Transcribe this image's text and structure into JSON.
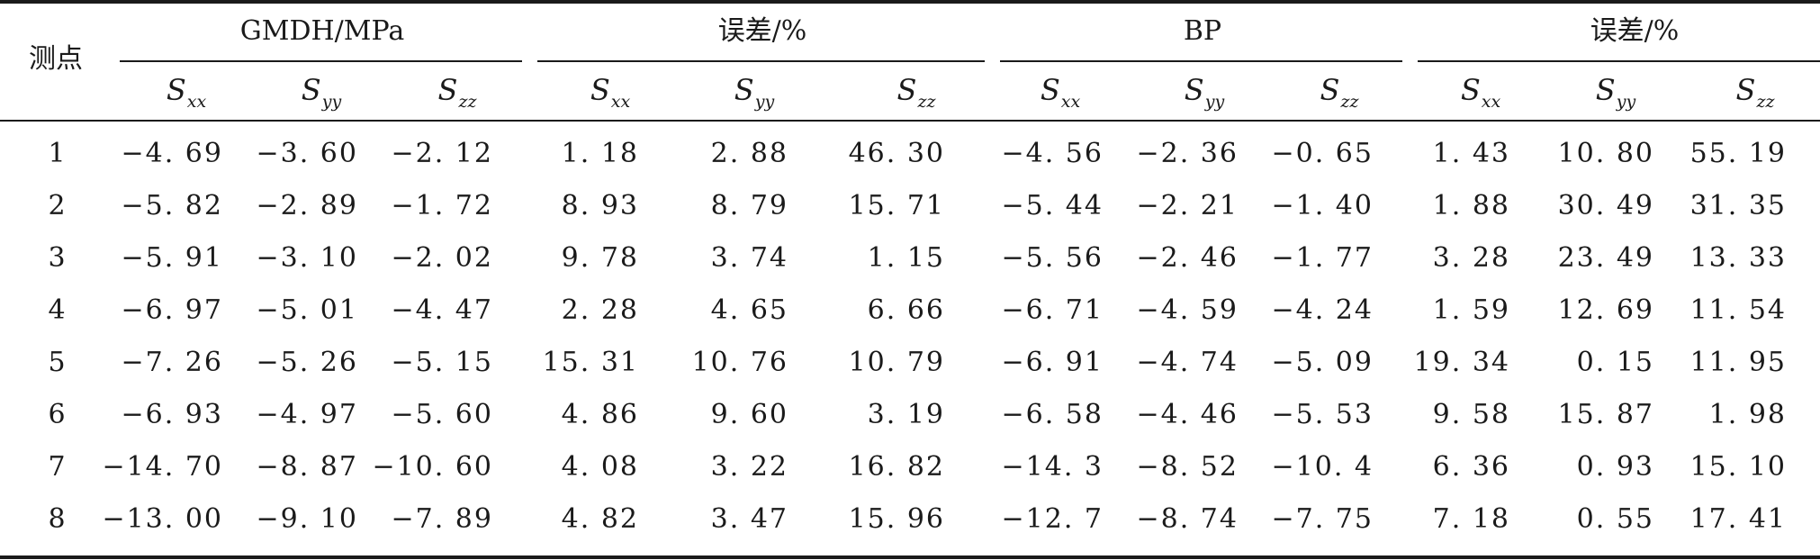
{
  "table": {
    "corner_label": "测点",
    "groups": [
      {
        "title": "GMDH/MPa"
      },
      {
        "title": "误差/%"
      },
      {
        "title": "BP"
      },
      {
        "title": "误差/%"
      }
    ],
    "column_headers": [
      {
        "base": "S",
        "sub": "xx"
      },
      {
        "base": "S",
        "sub": "yy"
      },
      {
        "base": "S",
        "sub": "zz"
      },
      {
        "base": "S",
        "sub": "xx"
      },
      {
        "base": "S",
        "sub": "yy"
      },
      {
        "base": "S",
        "sub": "zz"
      },
      {
        "base": "S",
        "sub": "xx"
      },
      {
        "base": "S",
        "sub": "yy"
      },
      {
        "base": "S",
        "sub": "zz"
      },
      {
        "base": "S",
        "sub": "xx"
      },
      {
        "base": "S",
        "sub": "yy"
      },
      {
        "base": "S",
        "sub": "zz"
      }
    ],
    "rows": [
      {
        "id": "1",
        "values": [
          "−4. 69",
          "−3. 60",
          "−2. 12",
          "1. 18",
          "2. 88",
          "46. 30",
          "−4. 56",
          "−2. 36",
          "−0. 65",
          "1. 43",
          "10. 80",
          "55. 19"
        ]
      },
      {
        "id": "2",
        "values": [
          "−5. 82",
          "−2. 89",
          "−1. 72",
          "8. 93",
          "8. 79",
          "15. 71",
          "−5. 44",
          "−2. 21",
          "−1. 40",
          "1. 88",
          "30. 49",
          "31. 35"
        ]
      },
      {
        "id": "3",
        "values": [
          "−5. 91",
          "−3. 10",
          "−2. 02",
          "9. 78",
          "3. 74",
          "1. 15",
          "−5. 56",
          "−2. 46",
          "−1. 77",
          "3. 28",
          "23. 49",
          "13. 33"
        ]
      },
      {
        "id": "4",
        "values": [
          "−6. 97",
          "−5. 01",
          "−4. 47",
          "2. 28",
          "4. 65",
          "6. 66",
          "−6. 71",
          "−4. 59",
          "−4. 24",
          "1. 59",
          "12. 69",
          "11. 54"
        ]
      },
      {
        "id": "5",
        "values": [
          "−7. 26",
          "−5. 26",
          "−5. 15",
          "15. 31",
          "10. 76",
          "10. 79",
          "−6. 91",
          "−4. 74",
          "−5. 09",
          "19. 34",
          "0. 15",
          "11. 95"
        ]
      },
      {
        "id": "6",
        "values": [
          "−6. 93",
          "−4. 97",
          "−5. 60",
          "4. 86",
          "9. 60",
          "3. 19",
          "−6. 58",
          "−4. 46",
          "−5. 53",
          "9. 58",
          "15. 87",
          "1. 98"
        ]
      },
      {
        "id": "7",
        "values": [
          "−14. 70",
          "−8. 87",
          "−10. 60",
          "4. 08",
          "3. 22",
          "16. 82",
          "−14. 3",
          "−8. 52",
          "−10. 4",
          "6. 36",
          "0. 93",
          "15. 10"
        ]
      },
      {
        "id": "8",
        "values": [
          "−13. 00",
          "−9. 10",
          "−7. 89",
          "4. 82",
          "3. 47",
          "15. 96",
          "−12. 7",
          "−8. 74",
          "−7. 75",
          "7. 18",
          "0. 55",
          "17. 41"
        ]
      }
    ]
  }
}
